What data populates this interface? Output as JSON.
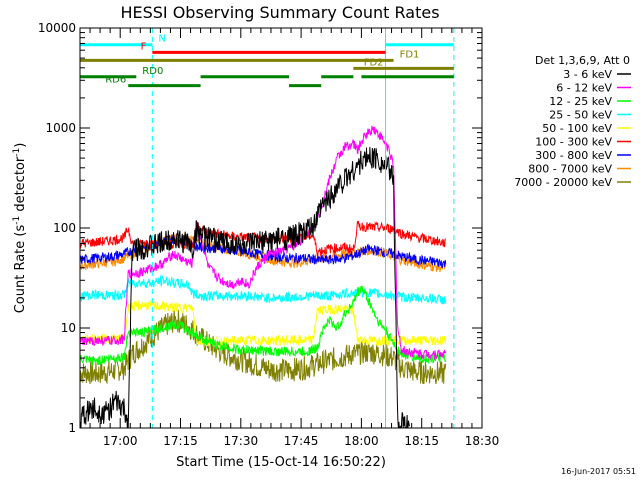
{
  "chart_data": {
    "type": "line",
    "title": "HESSI Observing Summary Count Rates",
    "xlabel": "Start Time (15-Oct-14 16:50:22)",
    "ylabel_main": "Count Rate (s",
    "ylabel_sup1": "-1",
    "ylabel_mid": " detector",
    "ylabel_sup2": "-1",
    "ylabel_end": ")",
    "yscale": "log",
    "ylim": [
      1,
      10000
    ],
    "xlim_min": [
      0,
      100
    ],
    "x_ticks": [
      {
        "min": 10,
        "label": "17:00"
      },
      {
        "min": 25,
        "label": "17:15"
      },
      {
        "min": 40,
        "label": "17:30"
      },
      {
        "min": 55,
        "label": "17:45"
      },
      {
        "min": 70,
        "label": "18:00"
      },
      {
        "min": 85,
        "label": "18:15"
      },
      {
        "min": 100,
        "label": "18:30"
      }
    ],
    "y_ticks": [
      {
        "value": 1,
        "label": "1"
      },
      {
        "value": 10,
        "label": "10"
      },
      {
        "value": 100,
        "label": "100"
      },
      {
        "value": 1000,
        "label": "1000"
      },
      {
        "value": 10000,
        "label": "10000"
      }
    ],
    "legend_header": "Det 1,3,6,9, Att 0",
    "series": [
      {
        "name": "3 - 6 keV",
        "color": "#000000",
        "points": [
          [
            0,
            1.2
          ],
          [
            3,
            1.6
          ],
          [
            6,
            1.4
          ],
          [
            9,
            1.8
          ],
          [
            11,
            1.5
          ],
          [
            12,
            1.1
          ],
          [
            13,
            60
          ],
          [
            16,
            64
          ],
          [
            18,
            66
          ],
          [
            21,
            72
          ],
          [
            23,
            80
          ],
          [
            25,
            74
          ],
          [
            27,
            72
          ],
          [
            28,
            60
          ],
          [
            29,
            95
          ],
          [
            31,
            80
          ],
          [
            34,
            75
          ],
          [
            37,
            72
          ],
          [
            40,
            66
          ],
          [
            44,
            70
          ],
          [
            48,
            76
          ],
          [
            52,
            80
          ],
          [
            55,
            88
          ],
          [
            58,
            100
          ],
          [
            60,
            160
          ],
          [
            62,
            200
          ],
          [
            64,
            260
          ],
          [
            66,
            310
          ],
          [
            68,
            380
          ],
          [
            70,
            460
          ],
          [
            72,
            520
          ],
          [
            74,
            500
          ],
          [
            76,
            420
          ],
          [
            77,
            380
          ],
          [
            78,
            300
          ],
          [
            79,
            1.2
          ],
          [
            80,
            1.1
          ],
          [
            82,
            1.0
          ]
        ]
      },
      {
        "name": "6 - 12 keV",
        "color": "#ff00ff",
        "points": [
          [
            0,
            7.2
          ],
          [
            4,
            7.5
          ],
          [
            8,
            7.4
          ],
          [
            11,
            7.8
          ],
          [
            12,
            35
          ],
          [
            15,
            36
          ],
          [
            18,
            40
          ],
          [
            21,
            45
          ],
          [
            23,
            55
          ],
          [
            25,
            50
          ],
          [
            27,
            45
          ],
          [
            28,
            44
          ],
          [
            29,
            110
          ],
          [
            30,
            80
          ],
          [
            32,
            40
          ],
          [
            35,
            30
          ],
          [
            38,
            27
          ],
          [
            40,
            30
          ],
          [
            42,
            27
          ],
          [
            44,
            40
          ],
          [
            47,
            55
          ],
          [
            50,
            58
          ],
          [
            53,
            65
          ],
          [
            55,
            75
          ],
          [
            57,
            95
          ],
          [
            59,
            120
          ],
          [
            60,
            160
          ],
          [
            62,
            300
          ],
          [
            64,
            500
          ],
          [
            66,
            650
          ],
          [
            68,
            700
          ],
          [
            69,
            600
          ],
          [
            71,
            850
          ],
          [
            73,
            1000
          ],
          [
            75,
            800
          ],
          [
            77,
            600
          ],
          [
            78,
            400
          ],
          [
            79,
            10
          ],
          [
            80,
            6
          ],
          [
            85,
            5.5
          ],
          [
            91,
            5.5
          ]
        ]
      },
      {
        "name": "12 - 25 keV",
        "color": "#00ff00",
        "points": [
          [
            0,
            4.8
          ],
          [
            4,
            4.7
          ],
          [
            8,
            5
          ],
          [
            11,
            5.2
          ],
          [
            12,
            9.2
          ],
          [
            16,
            9
          ],
          [
            20,
            10
          ],
          [
            24,
            11
          ],
          [
            27,
            9.5
          ],
          [
            30,
            8
          ],
          [
            33,
            7
          ],
          [
            36,
            6.5
          ],
          [
            40,
            6
          ],
          [
            44,
            6
          ],
          [
            48,
            5.8
          ],
          [
            52,
            5.8
          ],
          [
            56,
            5.8
          ],
          [
            59,
            6.2
          ],
          [
            60,
            9
          ],
          [
            62,
            12
          ],
          [
            64,
            10
          ],
          [
            66,
            14
          ],
          [
            68,
            18
          ],
          [
            69,
            22
          ],
          [
            70,
            26
          ],
          [
            72,
            18
          ],
          [
            74,
            12
          ],
          [
            76,
            9.5
          ],
          [
            78,
            7
          ],
          [
            80,
            5.5
          ],
          [
            84,
            5
          ],
          [
            91,
            5
          ]
        ]
      },
      {
        "name": "25 - 50 keV",
        "color": "#00ffff",
        "points": [
          [
            0,
            21
          ],
          [
            4,
            21.5
          ],
          [
            8,
            21
          ],
          [
            11,
            21.5
          ],
          [
            12,
            28
          ],
          [
            15,
            28.5
          ],
          [
            18,
            28
          ],
          [
            21,
            30
          ],
          [
            24,
            28
          ],
          [
            27,
            27
          ],
          [
            28,
            22
          ],
          [
            30,
            21
          ],
          [
            34,
            21
          ],
          [
            38,
            21
          ],
          [
            42,
            21
          ],
          [
            46,
            20
          ],
          [
            50,
            20
          ],
          [
            54,
            20.5
          ],
          [
            58,
            21
          ],
          [
            62,
            21
          ],
          [
            66,
            22
          ],
          [
            70,
            23
          ],
          [
            74,
            22
          ],
          [
            78,
            21
          ],
          [
            82,
            20
          ],
          [
            86,
            20
          ],
          [
            91,
            19
          ]
        ]
      },
      {
        "name": "50 - 100 keV",
        "color": "#ffff00",
        "points": [
          [
            0,
            7.8
          ],
          [
            11,
            7.8
          ],
          [
            12,
            16
          ],
          [
            16,
            17
          ],
          [
            20,
            16.5
          ],
          [
            24,
            16
          ],
          [
            28,
            16
          ],
          [
            29,
            7.5
          ],
          [
            35,
            7.2
          ],
          [
            40,
            7.5
          ],
          [
            50,
            7.5
          ],
          [
            58,
            7.6
          ],
          [
            59,
            15
          ],
          [
            64,
            15.5
          ],
          [
            68,
            15
          ],
          [
            69,
            7.8
          ],
          [
            72,
            7.5
          ],
          [
            78,
            7.6
          ],
          [
            85,
            7.5
          ],
          [
            91,
            7.5
          ]
        ]
      },
      {
        "name": "100 - 300 keV",
        "color": "#ff0000",
        "points": [
          [
            0,
            70
          ],
          [
            4,
            72
          ],
          [
            8,
            75
          ],
          [
            11,
            80
          ],
          [
            12,
            100
          ],
          [
            13,
            70
          ],
          [
            16,
            72
          ],
          [
            20,
            68
          ],
          [
            24,
            70
          ],
          [
            28,
            68
          ],
          [
            29,
            110
          ],
          [
            31,
            92
          ],
          [
            34,
            88
          ],
          [
            38,
            82
          ],
          [
            42,
            80
          ],
          [
            46,
            78
          ],
          [
            50,
            78
          ],
          [
            54,
            80
          ],
          [
            58,
            85
          ],
          [
            59,
            58
          ],
          [
            62,
            62
          ],
          [
            66,
            64
          ],
          [
            68,
            60
          ],
          [
            69,
            105
          ],
          [
            72,
            102
          ],
          [
            76,
            100
          ],
          [
            78,
            98
          ],
          [
            80,
            88
          ],
          [
            84,
            80
          ],
          [
            88,
            75
          ],
          [
            91,
            70
          ]
        ]
      },
      {
        "name": "300 - 800 keV",
        "color": "#0000ff",
        "points": [
          [
            0,
            48
          ],
          [
            4,
            50
          ],
          [
            8,
            52
          ],
          [
            11,
            55
          ],
          [
            13,
            60
          ],
          [
            16,
            65
          ],
          [
            19,
            70
          ],
          [
            22,
            78
          ],
          [
            25,
            76
          ],
          [
            28,
            70
          ],
          [
            29,
            65
          ],
          [
            32,
            63
          ],
          [
            36,
            62
          ],
          [
            40,
            58
          ],
          [
            44,
            55
          ],
          [
            48,
            52
          ],
          [
            52,
            50
          ],
          [
            56,
            50
          ],
          [
            59,
            48
          ],
          [
            62,
            48
          ],
          [
            66,
            50
          ],
          [
            69,
            55
          ],
          [
            72,
            62
          ],
          [
            75,
            58
          ],
          [
            78,
            55
          ],
          [
            80,
            52
          ],
          [
            84,
            48
          ],
          [
            88,
            46
          ],
          [
            91,
            44
          ]
        ]
      },
      {
        "name": "800 - 7000 keV",
        "color": "#ff8c00",
        "points": [
          [
            0,
            42
          ],
          [
            4,
            44
          ],
          [
            8,
            46
          ],
          [
            11,
            50
          ],
          [
            13,
            56
          ],
          [
            16,
            62
          ],
          [
            19,
            70
          ],
          [
            22,
            78
          ],
          [
            25,
            80
          ],
          [
            28,
            75
          ],
          [
            31,
            70
          ],
          [
            34,
            64
          ],
          [
            38,
            60
          ],
          [
            42,
            55
          ],
          [
            46,
            50
          ],
          [
            50,
            46
          ],
          [
            54,
            45
          ],
          [
            58,
            48
          ],
          [
            62,
            52
          ],
          [
            66,
            55
          ],
          [
            69,
            58
          ],
          [
            72,
            60
          ],
          [
            75,
            58
          ],
          [
            78,
            52
          ],
          [
            80,
            48
          ],
          [
            84,
            44
          ],
          [
            88,
            41
          ],
          [
            91,
            40
          ]
        ]
      },
      {
        "name": "7000 - 20000 keV",
        "color": "#808000",
        "points": [
          [
            0,
            3.6
          ],
          [
            4,
            3.5
          ],
          [
            8,
            3.7
          ],
          [
            11,
            4
          ],
          [
            13,
            5.5
          ],
          [
            16,
            7
          ],
          [
            19,
            9
          ],
          [
            22,
            11
          ],
          [
            24,
            12
          ],
          [
            27,
            10.5
          ],
          [
            30,
            8
          ],
          [
            33,
            6.5
          ],
          [
            36,
            5.5
          ],
          [
            40,
            4.8
          ],
          [
            44,
            4.2
          ],
          [
            48,
            3.8
          ],
          [
            52,
            3.8
          ],
          [
            56,
            4
          ],
          [
            60,
            4.5
          ],
          [
            64,
            5
          ],
          [
            68,
            5.5
          ],
          [
            72,
            5.8
          ],
          [
            75,
            5.5
          ],
          [
            78,
            5
          ],
          [
            80,
            4
          ],
          [
            84,
            3.6
          ],
          [
            88,
            3.6
          ],
          [
            91,
            3.5
          ]
        ]
      }
    ],
    "flag_bars": [
      {
        "label": "N",
        "color": "#00ffff",
        "segments": [
          [
            0,
            18
          ],
          [
            76,
            93
          ]
        ],
        "value": 6800,
        "label_x": 19,
        "label_side": "right"
      },
      {
        "label": "F",
        "color": "#ff0000",
        "segments": [
          [
            18,
            76
          ]
        ],
        "value": 5700,
        "label_x": 17,
        "label_side": "left"
      },
      {
        "label": "FD1",
        "color": "#808000",
        "segments": [
          [
            0,
            78
          ]
        ],
        "value": 4750,
        "label_x": 79,
        "label_side": "right"
      },
      {
        "label": "FD2",
        "color": "#808000",
        "segments": [
          [
            68,
            78
          ],
          [
            78,
            93
          ]
        ],
        "value": 3950,
        "label_x": 76,
        "label_side": "left"
      },
      {
        "label": "RD0",
        "color": "#008000",
        "segments": [
          [
            0,
            14
          ],
          [
            30,
            52
          ],
          [
            60,
            68
          ],
          [
            70,
            93
          ]
        ],
        "value": 3250,
        "label_x": 15,
        "label_side": "right"
      },
      {
        "label": "RD6",
        "color": "#008000",
        "segments": [
          [
            12,
            30
          ],
          [
            52,
            60
          ]
        ],
        "value": 2650,
        "label_x": 12,
        "label_side": "left"
      }
    ],
    "vlines": [
      {
        "x": 18,
        "color": "#00ffff",
        "dashed": true
      },
      {
        "x": 76,
        "color": "#00ffff",
        "dashed": false
      },
      {
        "x": 93,
        "color": "#00ffff",
        "dashed": true
      }
    ]
  },
  "footer": {
    "date": "16-Jun-2017 05:51"
  }
}
